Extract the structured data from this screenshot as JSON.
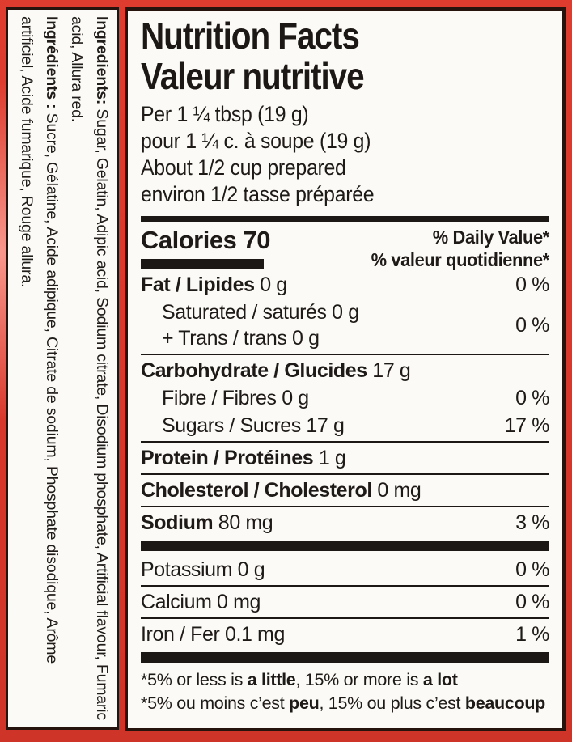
{
  "package": {
    "background_color": "#d8372b",
    "panel_color": "#fbfaf6",
    "ink_color": "#1c1816"
  },
  "ingredients": {
    "en_label": "Ingredients:",
    "en_text": " Sugar, Gelatin, Adipic acid, Sodium citrate, Disodium phosphate, Artificial flavour, Fumaric acid, Allura red.",
    "fr_label": "Ingrédients :",
    "fr_text": " Sucre, Gélatine, Acide adipique, Citrate de sodium, Phosphate disodique, Arôme artificiel, Acide fumarique, Rouge allura."
  },
  "nft": {
    "title_en": "Nutrition Facts",
    "title_fr": "Valeur nutritive",
    "serving": [
      "Per 1 ¼ tbsp (19 g)",
      "pour 1 ¼ c. à soupe (19 g)",
      "About 1/2 cup prepared",
      "environ 1/2 tasse préparée"
    ],
    "calories_label": "Calories",
    "calories_value": "70",
    "dv_en": "% Daily Value*",
    "dv_fr": "% valeur quotidienne*",
    "rows": [
      {
        "id": "fat",
        "bold": "Fat / Lipides",
        "rest": " 0 g",
        "value": "0 %"
      },
      {
        "id": "saturated-trans",
        "line1": "Saturated / saturés 0 g",
        "line2": "+ Trans / trans 0 g",
        "value": "0 %"
      },
      {
        "id": "carbohydrate",
        "bold": "Carbohydrate / Glucides",
        "rest": " 17 g"
      },
      {
        "id": "fibre",
        "label": "Fibre / Fibres 0 g",
        "value": "0 %"
      },
      {
        "id": "sugars",
        "label": "Sugars / Sucres 17 g",
        "value": "17 %"
      },
      {
        "id": "protein",
        "bold": "Protein / Protéines",
        "rest": " 1 g"
      },
      {
        "id": "cholesterol",
        "bold": "Cholesterol / Cholesterol",
        "rest": " 0 mg"
      },
      {
        "id": "sodium",
        "bold": "Sodium",
        "rest": " 80 mg",
        "value": "3 %"
      },
      {
        "id": "potassium",
        "label": "Potassium 0 g",
        "value": "0 %"
      },
      {
        "id": "calcium",
        "label": "Calcium 0 mg",
        "value": "0 %"
      },
      {
        "id": "iron",
        "label": "Iron / Fer 0.1 mg",
        "value": "1 %"
      }
    ],
    "footnote_en": {
      "p1": "*5% or less is ",
      "b1": "a little",
      "p2": ", 15% or more is ",
      "b2": "a lot"
    },
    "footnote_fr": {
      "p1": "*5% ou moins c’est ",
      "b1": "peu",
      "p2": ", 15% ou plus c’est ",
      "b2": "beaucoup"
    }
  }
}
